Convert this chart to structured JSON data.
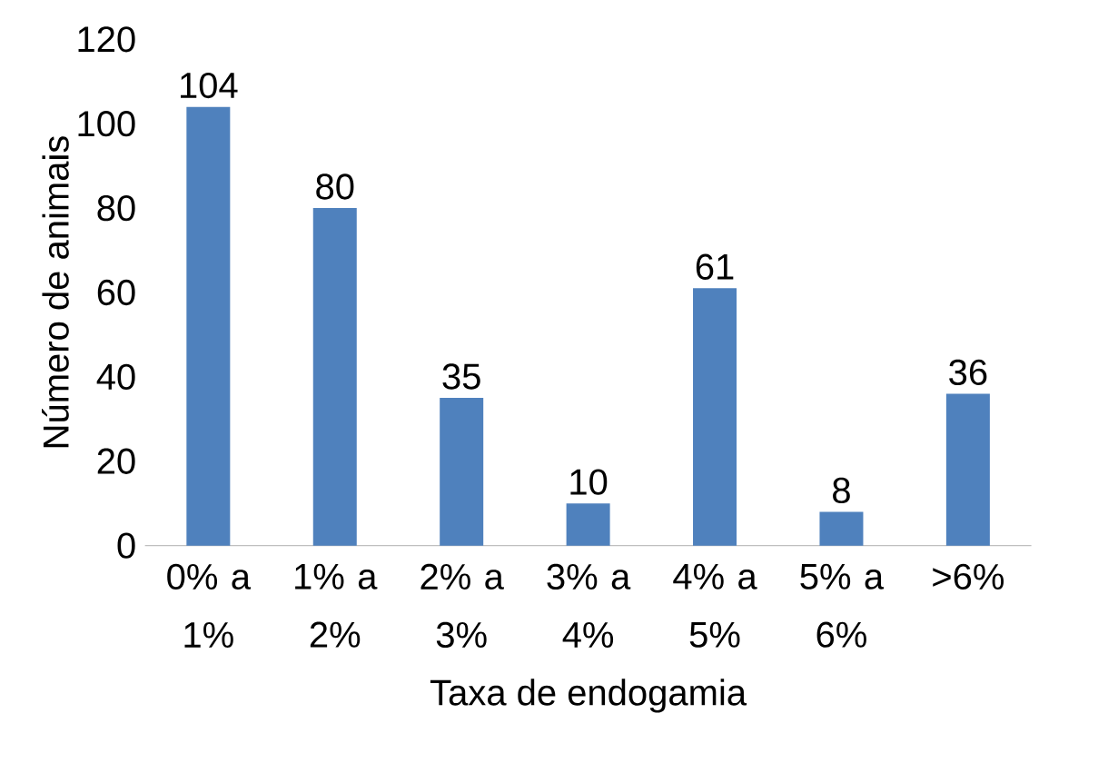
{
  "chart_data": {
    "type": "bar",
    "xlabel": "Taxa de endogamia",
    "ylabel": "Número de animais",
    "categories": [
      "0% a 1%",
      "1% a 2%",
      "2% a 3%",
      "3% a 4%",
      "4% a 5%",
      "5% a 6%",
      ">6%"
    ],
    "values": [
      104,
      80,
      35,
      10,
      61,
      8,
      36
    ],
    "color": "#4f81bd",
    "ylim": [
      0,
      120
    ],
    "yticks": [
      0,
      20,
      40,
      60,
      80,
      100,
      120
    ],
    "data_labels": true
  }
}
